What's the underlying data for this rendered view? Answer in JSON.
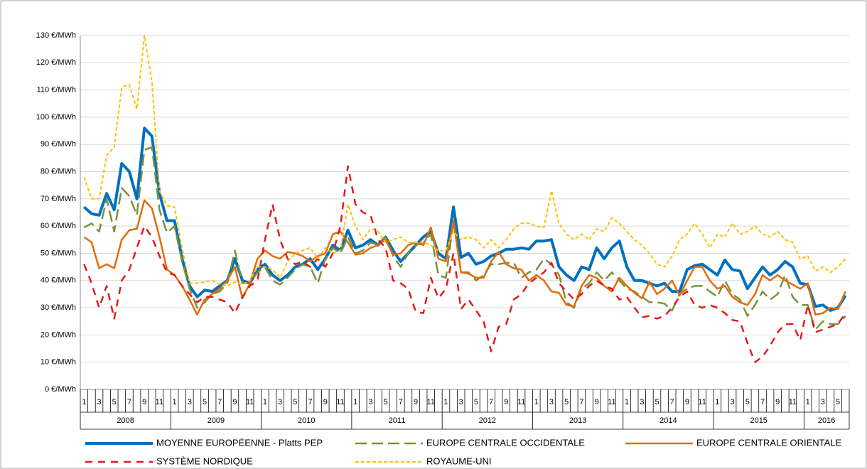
{
  "chart_data": {
    "type": "line",
    "categories": [
      "1",
      null,
      "3",
      null,
      "5",
      null,
      "7",
      null,
      "9",
      null,
      "11",
      null,
      "1",
      null,
      "3",
      null,
      "5",
      null,
      "7",
      null,
      "9",
      null,
      "11",
      null,
      "1",
      null,
      "3",
      null,
      "5",
      null,
      "7",
      null,
      "9",
      null,
      "11",
      null,
      "1",
      null,
      "3",
      null,
      "5",
      null,
      "7",
      null,
      "9",
      null,
      "11",
      null,
      "1",
      null,
      "3",
      null,
      "5",
      null,
      "7",
      null,
      "9",
      null,
      "11",
      null,
      "1",
      null,
      "3",
      null,
      "5",
      null,
      "7",
      null,
      "9",
      null,
      "11",
      null,
      "1",
      null,
      "3",
      null,
      "5",
      null,
      "7",
      null,
      "9",
      null,
      "11",
      null,
      "1",
      null,
      "3",
      null,
      "5",
      null,
      "7",
      null,
      "9",
      null,
      "11",
      null,
      "1",
      null,
      "3",
      null,
      "5",
      null
    ],
    "years": [
      "2008",
      "2009",
      "2010",
      "2011",
      "2012",
      "2013",
      "2014",
      "2015",
      "2016"
    ],
    "ylim": [
      0,
      130
    ],
    "yticks": [
      {
        "value": 0,
        "label": "0 €/MWh"
      },
      {
        "value": 10,
        "label": "10 €/MWh"
      },
      {
        "value": 20,
        "label": "20 €/MWh"
      },
      {
        "value": 30,
        "label": "30 €/MWh"
      },
      {
        "value": 40,
        "label": "40 €/MWh"
      },
      {
        "value": 50,
        "label": "50 €/MWh"
      },
      {
        "value": 60,
        "label": "60 €/MWh"
      },
      {
        "value": 70,
        "label": "70 €/MWh"
      },
      {
        "value": 80,
        "label": "80 €/MWh"
      },
      {
        "value": 90,
        "label": "90 €/MWh"
      },
      {
        "value": 100,
        "label": "100 €/MWh"
      },
      {
        "value": 110,
        "label": "110 €/MWh"
      },
      {
        "value": 120,
        "label": "120 €/MWh"
      },
      {
        "value": 130,
        "label": "130 €/MWh"
      }
    ],
    "grid": true,
    "legend": "bottom",
    "series": [
      {
        "name": "MOYENNE EUROPÉENNE - Platts PEP",
        "color": "#0070c0",
        "line_style": "solid",
        "values": [
          67,
          64.5,
          64,
          72,
          66,
          83,
          80,
          70,
          96,
          93,
          72,
          62,
          62,
          48,
          38,
          34,
          36.5,
          36,
          38,
          40,
          48,
          40,
          39,
          44,
          46,
          42,
          40,
          42,
          45,
          46,
          48,
          44,
          48,
          53,
          51,
          58.5,
          52,
          53,
          55,
          53,
          56,
          51,
          47,
          50,
          53,
          56,
          58,
          50,
          48,
          67,
          48.5,
          50,
          46,
          47,
          49,
          50,
          51.5,
          51.5,
          52,
          51.5,
          54.5,
          54.5,
          55,
          45,
          42,
          40,
          45,
          44,
          52,
          48,
          52,
          54.5,
          45,
          40,
          40,
          39,
          38,
          39,
          36,
          36,
          44,
          45.5,
          46,
          44,
          42,
          47.5,
          44,
          43.5,
          37,
          41,
          45,
          42,
          44,
          47,
          45,
          39,
          38.5,
          30.5,
          31,
          29,
          30,
          34.5
        ]
      },
      {
        "name": "EUROPE CENTRALE OCCIDENTALE",
        "color": "#77933c",
        "line_style": "long-dash",
        "values": [
          59.5,
          61,
          58,
          70,
          58,
          74,
          71,
          64,
          88,
          89,
          66,
          57.5,
          60,
          47,
          37,
          30,
          32,
          35,
          36,
          39,
          51,
          39,
          39,
          43,
          45,
          40,
          38.5,
          41,
          44,
          46,
          45,
          39,
          48,
          52,
          50,
          56,
          50,
          51,
          54,
          53,
          56,
          49,
          45,
          50,
          53,
          54,
          57,
          42,
          41,
          62,
          43,
          43,
          40,
          42,
          46,
          46,
          46.5,
          46.5,
          41,
          43,
          44,
          48,
          46,
          42,
          32,
          30,
          37,
          39,
          43,
          40,
          43,
          40,
          37,
          36,
          34,
          32,
          32,
          31.5,
          29,
          35,
          37,
          38,
          38,
          36,
          34,
          40,
          35,
          33,
          27,
          31,
          36,
          33,
          35,
          42,
          34,
          31,
          31,
          22,
          25,
          24,
          24,
          27
        ]
      },
      {
        "name": "EUROPE CENTRALE ORIENTALE",
        "color": "#e36c09",
        "line_style": "solid",
        "values": [
          56,
          54,
          44.5,
          46,
          44.5,
          55,
          58.5,
          59,
          69.5,
          66.5,
          56,
          44,
          42,
          38,
          33,
          27.5,
          33,
          35,
          37,
          40,
          45,
          33.5,
          39,
          48,
          51,
          49,
          48,
          50.5,
          50,
          49,
          47,
          49,
          50,
          57,
          58,
          54,
          49.5,
          50,
          52,
          53,
          55,
          49.5,
          50,
          53,
          54,
          53,
          59.5,
          48,
          47,
          62,
          43,
          42.5,
          41,
          41,
          47,
          50.5,
          46,
          44.5,
          44,
          40,
          42,
          40,
          36,
          35.5,
          31,
          30.5,
          38,
          42,
          41,
          38,
          36,
          41,
          38,
          35.5,
          33.5,
          39.5,
          35,
          37,
          40,
          34.5,
          40,
          45,
          45,
          40,
          37,
          38,
          34,
          32,
          31,
          35,
          42,
          40,
          42,
          40,
          38.5,
          37,
          39,
          27.5,
          28,
          30,
          29.5,
          36
        ]
      },
      {
        "name": "SYSTÈME NORDIQUE",
        "color": "#e41a1c",
        "line_style": "dashed",
        "values": [
          46,
          39,
          30,
          38,
          26,
          40,
          44,
          52,
          60,
          56,
          49,
          43,
          42,
          38,
          35,
          32,
          34,
          34,
          33,
          32,
          28,
          34,
          38,
          40,
          55,
          68,
          55,
          48,
          46,
          47,
          45,
          48,
          45,
          50,
          60,
          82,
          68,
          65,
          64,
          55,
          52,
          40,
          39,
          37,
          28.5,
          28,
          41,
          33.5,
          37,
          50,
          29.5,
          33,
          29,
          25,
          14,
          23,
          24,
          33,
          35,
          39,
          41,
          43,
          46.5,
          39,
          36,
          33,
          35,
          38,
          40,
          38,
          37,
          33,
          34,
          30,
          26.5,
          27,
          26,
          27,
          30,
          34,
          36,
          31,
          30,
          31,
          30,
          28,
          25.5,
          25,
          17,
          10,
          12,
          16,
          21,
          24,
          24,
          18,
          31,
          21,
          22,
          23,
          24,
          28
        ]
      },
      {
        "name": "ROYAUME-UNI",
        "color": "#ffc000",
        "line_style": "short-dash",
        "values": [
          78,
          70,
          70,
          86,
          89,
          111,
          112,
          103,
          130,
          113,
          73,
          67.5,
          67,
          52,
          39,
          39,
          39.5,
          40,
          38.5,
          38,
          39.5,
          38.5,
          40,
          45,
          45,
          44,
          41,
          47,
          50,
          51,
          52,
          48,
          52,
          50,
          51,
          68,
          60,
          55,
          59,
          58,
          54,
          55,
          56,
          54,
          54,
          54,
          53,
          51,
          51,
          58,
          55,
          56,
          55,
          52,
          55,
          52,
          55,
          59,
          61,
          61,
          60,
          59.5,
          73,
          61,
          57,
          55,
          57,
          55,
          59,
          58,
          63,
          61,
          58,
          55,
          53,
          50,
          46,
          45,
          49,
          55,
          57,
          61,
          57,
          52,
          57,
          56,
          61,
          57,
          58,
          60,
          57,
          56,
          58,
          55,
          54,
          48,
          49,
          43.5,
          45,
          43,
          45,
          48
        ]
      }
    ]
  }
}
